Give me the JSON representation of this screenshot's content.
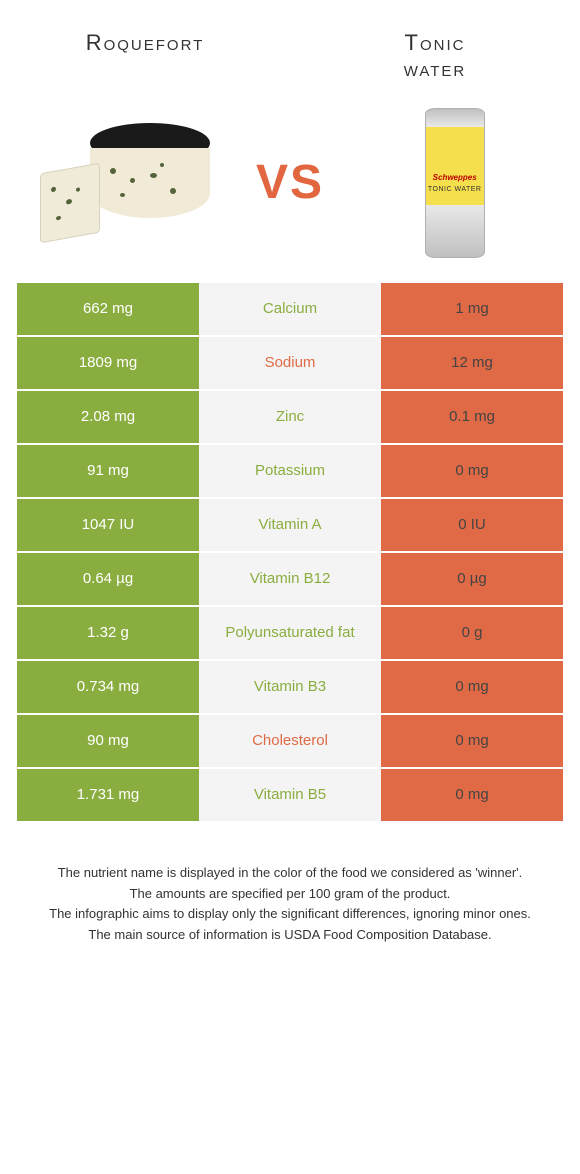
{
  "title_left": "Roquefort",
  "title_right_l1": "Tonic",
  "title_right_l2": "water",
  "vs": "VS",
  "can_brand": "Schweppes",
  "can_sub": "TONIC WATER",
  "colors": {
    "green": "#8aad3f",
    "orange": "#e06a45",
    "mid_bg": "#f4f4f4"
  },
  "rows": [
    {
      "left": "662 mg",
      "label": "Calcium",
      "right": "1 mg",
      "left_cls": "green",
      "lbl_cls": "lbl-green",
      "right_cls": "orange"
    },
    {
      "left": "1809 mg",
      "label": "Sodium",
      "right": "12 mg",
      "left_cls": "green",
      "lbl_cls": "lbl-orange",
      "right_cls": "orange"
    },
    {
      "left": "2.08 mg",
      "label": "Zinc",
      "right": "0.1 mg",
      "left_cls": "green",
      "lbl_cls": "lbl-green",
      "right_cls": "orange"
    },
    {
      "left": "91 mg",
      "label": "Potassium",
      "right": "0 mg",
      "left_cls": "green",
      "lbl_cls": "lbl-green",
      "right_cls": "orange"
    },
    {
      "left": "1047 IU",
      "label": "Vitamin A",
      "right": "0 IU",
      "left_cls": "green",
      "lbl_cls": "lbl-green",
      "right_cls": "orange"
    },
    {
      "left": "0.64 µg",
      "label": "Vitamin B12",
      "right": "0 µg",
      "left_cls": "green",
      "lbl_cls": "lbl-green",
      "right_cls": "orange"
    },
    {
      "left": "1.32 g",
      "label": "Polyunsaturated fat",
      "right": "0 g",
      "left_cls": "green",
      "lbl_cls": "lbl-green",
      "right_cls": "orange"
    },
    {
      "left": "0.734 mg",
      "label": "Vitamin B3",
      "right": "0 mg",
      "left_cls": "green",
      "lbl_cls": "lbl-green",
      "right_cls": "orange"
    },
    {
      "left": "90 mg",
      "label": "Cholesterol",
      "right": "0 mg",
      "left_cls": "green",
      "lbl_cls": "lbl-orange",
      "right_cls": "orange"
    },
    {
      "left": "1.731 mg",
      "label": "Vitamin B5",
      "right": "0 mg",
      "left_cls": "green",
      "lbl_cls": "lbl-green",
      "right_cls": "orange"
    }
  ],
  "footer": [
    "The nutrient name is displayed in the color of the food we considered as 'winner'.",
    "The amounts are specified per 100 gram of the product.",
    "The infographic aims to display only the significant differences, ignoring minor ones.",
    "The main source of information is USDA Food Composition Database."
  ]
}
